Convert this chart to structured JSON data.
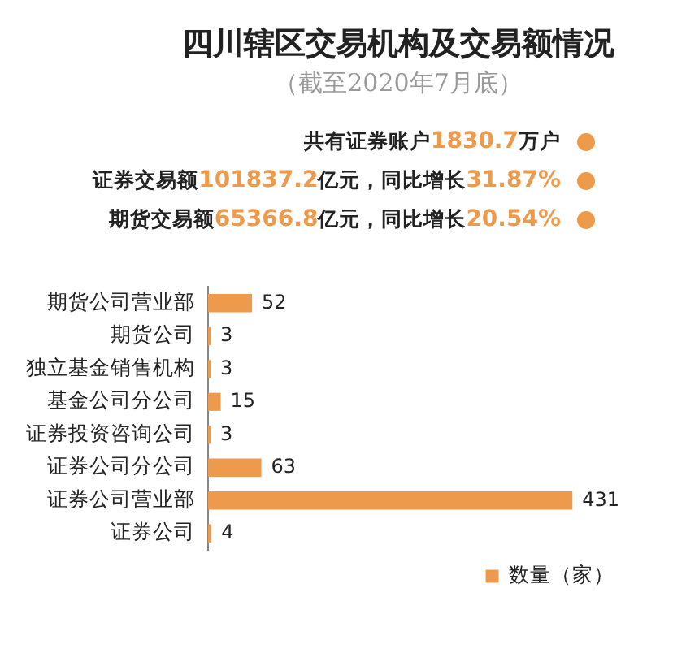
{
  "chart_data": {
    "type": "bar",
    "orientation": "horizontal",
    "title": "四川辖区交易机构及交易额情况",
    "subtitle": "（截至2020年7月底）",
    "annotations": [
      "共有证券账户1830.7万户",
      "证券交易额101837.2亿元，同比增长31.87%",
      "期货交易额65366.8亿元，同比增长20.54%"
    ],
    "categories": [
      "期货公司营业部",
      "期货公司",
      "独立基金销售机构",
      "基金公司分公司",
      "证券投资咨询公司",
      "证券公司分公司",
      "证券公司营业部",
      "证券公司"
    ],
    "series": [
      {
        "name": "数量（家）",
        "color": "#ee9a4d",
        "values": [
          52,
          3,
          3,
          15,
          3,
          63,
          431,
          4
        ]
      }
    ],
    "data_labels": true,
    "legend": "bottom right",
    "tick_labels": "y",
    "grid": false
  }
}
